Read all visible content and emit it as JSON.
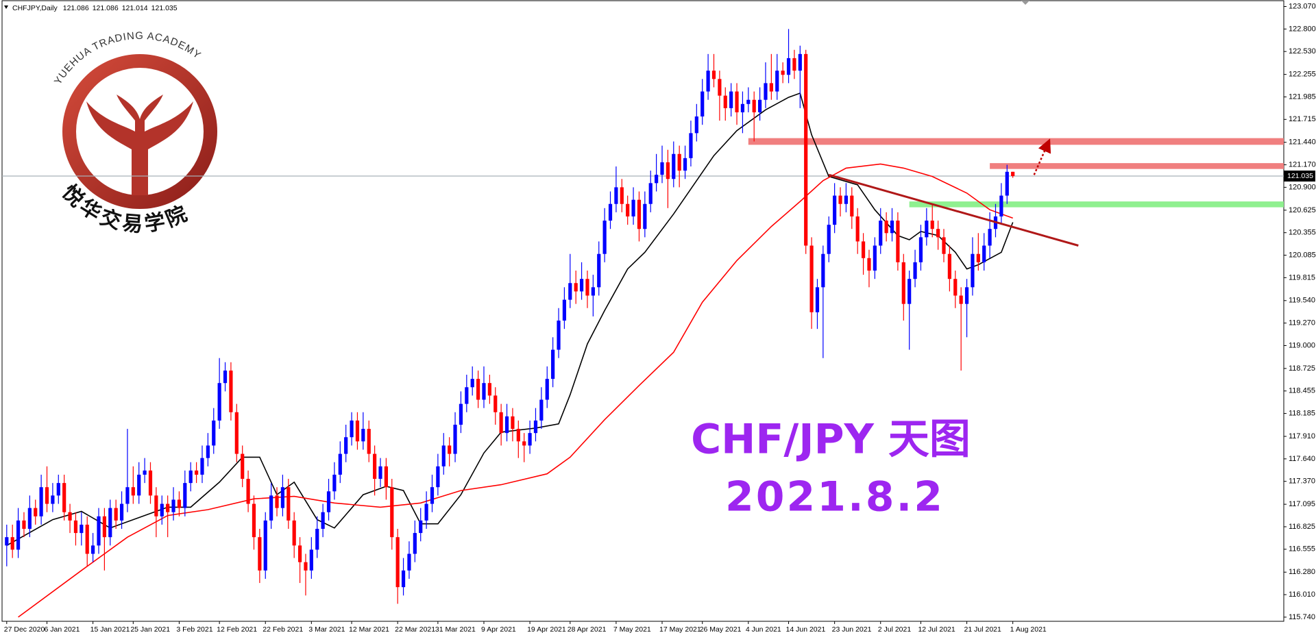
{
  "chart_data": {
    "type": "candlestick",
    "header": {
      "symbol": "CHFJPY,Daily"
    },
    "annotations": [
      "CHF/JPY 天图",
      "2021.8.2"
    ],
    "logo": {
      "top": "YUEHUA TRADING ACADEMY",
      "bottom": "悦华交易学院"
    },
    "up_color": "#0000ff",
    "down_color": "#ff0000",
    "price_line_color": "#a7b0b8",
    "ylim": [
      115.69,
      123.14
    ],
    "yticks": [
      {
        "value": 123.07,
        "label": "123.070"
      },
      {
        "value": 122.8,
        "label": "122.800"
      },
      {
        "value": 122.53,
        "label": "122.530"
      },
      122.255,
      121.985,
      121.715,
      {
        "value": 121.44,
        "label": "121.440"
      },
      {
        "value": 121.17,
        "label": "121.170"
      },
      {
        "value": 120.9,
        "label": "120.900"
      },
      120.625,
      120.355,
      120.085,
      119.815,
      {
        "value": 119.54,
        "label": "119.540"
      },
      {
        "value": 119.27,
        "label": "119.270"
      },
      {
        "value": 119,
        "label": "119.000"
      },
      118.725,
      118.455,
      118.185,
      {
        "value": 117.91,
        "label": "117.910"
      },
      {
        "value": 117.64,
        "label": "117.640"
      },
      {
        "value": 117.37,
        "label": "117.370"
      },
      117.095,
      116.825,
      116.555,
      {
        "value": 116.28,
        "label": "116.280"
      },
      {
        "value": 116.01,
        "label": "116.010"
      },
      {
        "value": 115.74,
        "label": "115.740"
      }
    ],
    "categories": [
      "27 Dec 2020",
      null,
      null,
      null,
      null,
      null,
      null,
      "6 Jan 2021",
      null,
      null,
      null,
      null,
      null,
      null,
      null,
      "15 Jan 2021",
      null,
      null,
      null,
      null,
      null,
      null,
      "25 Jan 2021",
      null,
      null,
      null,
      null,
      null,
      null,
      null,
      "3 Feb 2021",
      null,
      null,
      null,
      null,
      null,
      null,
      "12 Feb 2021",
      null,
      null,
      null,
      null,
      null,
      null,
      null,
      "22 Feb 2021",
      null,
      null,
      null,
      null,
      null,
      null,
      null,
      "3 Mar 2021",
      null,
      null,
      null,
      null,
      null,
      null,
      "12 Mar 2021",
      null,
      null,
      null,
      null,
      null,
      null,
      null,
      "22 Mar 2021",
      null,
      null,
      null,
      null,
      null,
      null,
      "31 Mar 2021",
      null,
      null,
      null,
      null,
      null,
      null,
      null,
      "9 Apr 2021",
      null,
      null,
      null,
      null,
      null,
      null,
      null,
      "19 Apr 2021",
      null,
      null,
      null,
      null,
      null,
      null,
      "28 Apr 2021",
      null,
      null,
      null,
      null,
      null,
      null,
      null,
      "7 May 2021",
      null,
      null,
      null,
      null,
      null,
      null,
      null,
      "17 May 2021",
      null,
      null,
      null,
      null,
      null,
      null,
      "26 May 2021",
      null,
      null,
      null,
      null,
      null,
      null,
      null,
      "4 Jun 2021",
      null,
      null,
      null,
      null,
      null,
      null,
      "14 Jun 2021",
      null,
      null,
      null,
      null,
      null,
      null,
      null,
      "23 Jun 2021",
      null,
      null,
      null,
      null,
      null,
      null,
      null,
      "2 Jul 2021",
      null,
      null,
      null,
      null,
      null,
      null,
      "12 Jul 2021",
      null,
      null,
      null,
      null,
      null,
      null,
      null,
      "21 Jul 2021",
      null,
      null,
      null,
      null,
      null,
      null,
      null,
      "1 Aug 2021"
    ],
    "open": [
      116.6,
      116.7,
      116.55,
      116.9,
      116.8,
      117.05,
      116.95,
      117.3,
      117.1,
      117.2,
      117.35,
      117.0,
      116.9,
      116.75,
      116.85,
      116.5,
      116.6,
      116.95,
      116.7,
      117.05,
      116.9,
      117.1,
      117.3,
      117.2,
      117.45,
      117.5,
      117.2,
      116.95,
      117.1,
      117.0,
      117.15,
      117.05,
      117.35,
      117.5,
      117.45,
      117.65,
      117.8,
      118.1,
      118.55,
      118.7,
      118.2,
      117.7,
      117.4,
      117.1,
      116.7,
      116.3,
      116.9,
      117.2,
      117.05,
      117.3,
      116.9,
      116.6,
      116.4,
      116.3,
      116.55,
      116.8,
      117.0,
      117.25,
      117.45,
      117.7,
      117.9,
      118.1,
      117.85,
      118.0,
      117.7,
      117.4,
      117.55,
      117.3,
      116.7,
      116.1,
      116.3,
      116.5,
      116.75,
      116.9,
      117.1,
      117.3,
      117.55,
      117.8,
      117.7,
      118.05,
      118.3,
      118.5,
      118.6,
      118.35,
      118.55,
      118.4,
      118.2,
      117.95,
      118.15,
      118.0,
      117.85,
      117.8,
      117.95,
      118.1,
      118.35,
      118.6,
      118.95,
      119.3,
      119.55,
      119.75,
      119.65,
      119.8,
      119.6,
      119.7,
      120.1,
      120.5,
      120.7,
      120.9,
      120.7,
      120.55,
      120.75,
      120.4,
      120.7,
      120.95,
      121.05,
      121.2,
      121.0,
      121.3,
      121.1,
      121.25,
      121.55,
      121.75,
      122.05,
      122.3,
      122.2,
      122.0,
      121.85,
      122.05,
      121.8,
      121.9,
      121.95,
      121.8,
      121.95,
      122.15,
      122.05,
      122.3,
      122.25,
      122.45,
      122.3,
      122.5,
      120.2,
      119.4,
      119.7,
      120.1,
      120.45,
      120.8,
      120.7,
      120.8,
      120.55,
      120.25,
      120.05,
      119.9,
      120.2,
      120.5,
      120.35,
      120.5,
      120.0,
      119.5,
      119.8,
      120.0,
      120.3,
      120.5,
      120.4,
      120.3,
      120.1,
      119.8,
      119.6,
      119.5,
      119.7,
      120.1,
      120.0,
      120.2,
      120.4,
      120.55,
      120.8,
      121.086
    ],
    "high": [
      116.85,
      116.85,
      117.05,
      117.0,
      117.2,
      117.15,
      117.45,
      117.55,
      117.35,
      117.45,
      117.45,
      117.1,
      117.0,
      117.0,
      116.95,
      116.75,
      117.05,
      117.05,
      117.15,
      117.15,
      117.25,
      118.0,
      117.55,
      117.6,
      117.65,
      117.6,
      117.3,
      117.2,
      117.2,
      117.3,
      117.25,
      117.5,
      117.6,
      117.6,
      117.8,
      117.95,
      118.25,
      118.85,
      118.8,
      118.8,
      118.3,
      117.8,
      117.5,
      117.2,
      116.8,
      117.0,
      117.35,
      117.3,
      117.45,
      117.4,
      117.0,
      116.7,
      116.5,
      116.7,
      116.95,
      117.1,
      117.4,
      117.6,
      117.85,
      118.05,
      118.2,
      118.2,
      118.2,
      118.1,
      117.8,
      117.65,
      117.65,
      117.4,
      116.8,
      116.45,
      116.65,
      116.9,
      117.05,
      117.25,
      117.45,
      117.7,
      117.95,
      117.9,
      118.2,
      118.45,
      118.65,
      118.75,
      118.7,
      118.75,
      118.65,
      118.5,
      118.3,
      118.3,
      118.25,
      118.1,
      117.95,
      118.1,
      118.25,
      118.5,
      118.75,
      119.1,
      119.45,
      119.7,
      120.1,
      119.9,
      120.0,
      119.9,
      119.85,
      120.25,
      120.65,
      120.85,
      121.15,
      121.0,
      120.8,
      120.9,
      120.85,
      120.85,
      121.1,
      121.3,
      121.4,
      121.35,
      121.45,
      121.4,
      121.4,
      121.7,
      121.9,
      122.2,
      122.5,
      122.5,
      122.3,
      122.1,
      122.15,
      122.15,
      122.05,
      122.1,
      122.05,
      122.1,
      122.4,
      122.5,
      122.5,
      122.4,
      122.8,
      122.55,
      122.6,
      122.55,
      120.3,
      119.8,
      120.2,
      120.55,
      120.95,
      120.9,
      120.95,
      120.9,
      120.65,
      120.35,
      120.15,
      120.3,
      120.65,
      120.6,
      120.65,
      120.6,
      120.1,
      119.9,
      120.15,
      120.45,
      120.65,
      120.7,
      120.5,
      120.4,
      120.2,
      119.9,
      119.7,
      119.8,
      120.3,
      120.35,
      120.35,
      120.6,
      120.7,
      120.95,
      121.17,
      121.086
    ],
    "low": [
      116.35,
      116.45,
      116.45,
      116.7,
      116.7,
      116.85,
      116.85,
      117.0,
      117.0,
      117.1,
      116.9,
      116.75,
      116.6,
      116.6,
      116.35,
      116.4,
      116.5,
      116.3,
      116.6,
      116.8,
      116.8,
      117.0,
      117.1,
      117.1,
      117.35,
      117.1,
      116.7,
      116.85,
      116.7,
      116.9,
      116.95,
      116.95,
      117.25,
      117.35,
      117.35,
      117.55,
      117.7,
      118.0,
      118.45,
      118.1,
      117.6,
      117.3,
      117.0,
      116.55,
      116.15,
      116.2,
      116.8,
      116.95,
      116.95,
      116.8,
      116.45,
      116.15,
      116.0,
      116.2,
      116.45,
      116.7,
      116.9,
      117.15,
      117.35,
      117.6,
      117.8,
      117.75,
      117.75,
      117.6,
      117.2,
      117.3,
      117.15,
      116.55,
      115.9,
      116.0,
      116.2,
      116.4,
      116.65,
      116.8,
      117.0,
      117.2,
      117.45,
      117.55,
      117.6,
      117.95,
      118.2,
      118.4,
      118.25,
      118.25,
      118.3,
      118.05,
      117.8,
      117.85,
      117.85,
      117.65,
      117.6,
      117.7,
      117.85,
      118.0,
      118.25,
      118.5,
      118.85,
      119.2,
      119.45,
      119.5,
      119.55,
      119.45,
      119.35,
      119.6,
      120.0,
      120.4,
      120.6,
      120.6,
      120.45,
      120.45,
      120.25,
      120.3,
      120.6,
      120.85,
      120.95,
      120.65,
      120.9,
      120.9,
      121.0,
      121.15,
      121.45,
      121.65,
      121.95,
      122.1,
      121.7,
      121.7,
      121.75,
      121.65,
      121.55,
      121.8,
      121.45,
      121.7,
      121.85,
      121.95,
      121.95,
      122.15,
      122.15,
      122.2,
      121.85,
      120.1,
      119.2,
      119.2,
      118.85,
      120.0,
      120.35,
      120.55,
      120.6,
      120.4,
      120.1,
      119.85,
      119.7,
      119.8,
      120.1,
      120.25,
      120.25,
      119.9,
      119.3,
      118.95,
      119.7,
      119.9,
      120.2,
      120.3,
      120.15,
      120.0,
      119.65,
      119.45,
      118.7,
      119.1,
      119.6,
      119.9,
      119.9,
      120.05,
      120.3,
      120.45,
      120.7,
      121.014
    ],
    "close": [
      116.7,
      116.55,
      116.9,
      116.8,
      117.05,
      116.95,
      117.3,
      117.1,
      117.2,
      117.35,
      117.0,
      116.9,
      116.75,
      116.85,
      116.5,
      116.6,
      116.95,
      116.7,
      117.05,
      116.9,
      117.1,
      117.3,
      117.2,
      117.45,
      117.5,
      117.2,
      116.95,
      117.1,
      117.0,
      117.15,
      117.05,
      117.35,
      117.5,
      117.45,
      117.65,
      117.8,
      118.1,
      118.55,
      118.7,
      118.2,
      117.7,
      117.4,
      117.1,
      116.7,
      116.3,
      116.9,
      117.2,
      117.05,
      117.3,
      116.9,
      116.6,
      116.4,
      116.3,
      116.55,
      116.8,
      117.0,
      117.25,
      117.45,
      117.7,
      117.9,
      118.1,
      117.85,
      118.0,
      117.7,
      117.4,
      117.55,
      117.3,
      116.7,
      116.1,
      116.3,
      116.5,
      116.75,
      116.9,
      117.1,
      117.3,
      117.55,
      117.8,
      117.7,
      118.05,
      118.3,
      118.5,
      118.6,
      118.35,
      118.55,
      118.4,
      118.2,
      117.95,
      118.15,
      118.0,
      117.85,
      117.8,
      117.95,
      118.1,
      118.35,
      118.6,
      118.95,
      119.3,
      119.55,
      119.75,
      119.65,
      119.8,
      119.6,
      119.7,
      120.1,
      120.5,
      120.7,
      120.9,
      120.7,
      120.55,
      120.75,
      120.4,
      120.7,
      120.95,
      121.05,
      121.2,
      121.0,
      121.3,
      121.1,
      121.25,
      121.55,
      121.75,
      122.05,
      122.3,
      122.2,
      122.0,
      121.85,
      122.05,
      121.8,
      121.9,
      121.95,
      121.8,
      121.95,
      122.15,
      122.05,
      122.3,
      122.25,
      122.45,
      122.3,
      122.5,
      120.2,
      119.4,
      119.7,
      120.1,
      120.45,
      120.8,
      120.7,
      120.8,
      120.55,
      120.25,
      120.05,
      119.9,
      120.2,
      120.5,
      120.35,
      120.5,
      120.0,
      119.5,
      119.8,
      120.0,
      120.3,
      120.5,
      120.4,
      120.3,
      120.1,
      119.8,
      119.6,
      119.5,
      119.7,
      120.1,
      120.0,
      120.2,
      120.4,
      120.55,
      120.8,
      121.086,
      121.035
    ],
    "moving_averages": [
      {
        "color": "#000000",
        "x": [
          0,
          8,
          13,
          18,
          22,
          28,
          32,
          37,
          41,
          44,
          47,
          50,
          54,
          57,
          62,
          66,
          69,
          72,
          75,
          79,
          83,
          86,
          92,
          96,
          98,
          101,
          104,
          108,
          111,
          116,
          120,
          123,
          127,
          132,
          136,
          138,
          140,
          143,
          148,
          151,
          155,
          157,
          159,
          162,
          165,
          167,
          169,
          173,
          175
        ],
        "values": [
          116.6,
          116.91,
          117.01,
          116.81,
          116.91,
          117.06,
          117.06,
          117.36,
          117.66,
          117.66,
          117.21,
          117.36,
          116.91,
          116.81,
          117.21,
          117.31,
          117.26,
          116.86,
          116.86,
          117.21,
          117.71,
          117.96,
          118.01,
          118.06,
          118.41,
          119.02,
          119.42,
          119.92,
          120.12,
          120.58,
          120.98,
          121.28,
          121.58,
          121.83,
          121.98,
          122.03,
          121.53,
          121.03,
          120.93,
          120.63,
          120.32,
          120.27,
          120.37,
          120.32,
          120.12,
          119.92,
          119.97,
          120.12,
          120.48
        ]
      },
      {
        "color": "#ff0000",
        "x": [
          2,
          13,
          21,
          28,
          35,
          43,
          50,
          57,
          65,
          72,
          79,
          86,
          94,
          98,
          104,
          110,
          116,
          121,
          127,
          133,
          138,
          142,
          146,
          152,
          156,
          161,
          167,
          171,
          175
        ],
        "values": [
          115.74,
          116.3,
          116.7,
          116.96,
          117.03,
          117.16,
          117.19,
          117.11,
          117.06,
          117.11,
          117.26,
          117.33,
          117.46,
          117.66,
          118.11,
          118.52,
          118.92,
          119.52,
          120.02,
          120.43,
          120.73,
          120.98,
          121.13,
          121.18,
          121.13,
          121.03,
          120.83,
          120.63,
          120.53
        ]
      }
    ],
    "zones": [
      {
        "color": "#f07f7f",
        "from": 129,
        "range": [
          121.41,
          121.49
        ]
      },
      {
        "color": "#f07f7f",
        "from": 171,
        "range": [
          121.12,
          121.19
        ]
      },
      {
        "color": "#8ff08f",
        "from": 157,
        "range": [
          120.66,
          120.73
        ]
      }
    ],
    "trendline": {
      "color": "#b01818",
      "x": [
        143,
        186.4
      ],
      "values": [
        121.05,
        120.2
      ]
    },
    "arrow": {
      "color": "#c00000",
      "x": [
        178.7,
        181
      ],
      "values": [
        121.05,
        121.41
      ]
    }
  }
}
